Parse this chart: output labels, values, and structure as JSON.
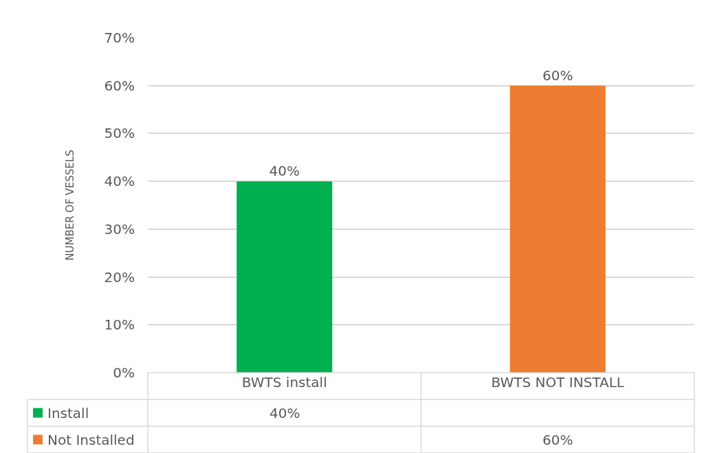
{
  "chart_data": {
    "type": "bar",
    "ylabel": "NUMBER OF VESSELS",
    "categories": [
      "BWTS install",
      "BWTS NOT INSTALL"
    ],
    "series": [
      {
        "name": "Install",
        "color": "#00b050",
        "values": [
          40,
          null
        ],
        "value_labels": [
          "40%",
          null
        ]
      },
      {
        "name": "Not Installed",
        "color": "#ed7d31",
        "values": [
          null,
          60
        ],
        "value_labels": [
          null,
          "60%"
        ]
      }
    ],
    "ylim": [
      0,
      70
    ],
    "yticks": [
      {
        "value": 0,
        "label": "0%"
      },
      {
        "value": 10,
        "label": "10%"
      },
      {
        "value": 20,
        "label": "20%"
      },
      {
        "value": 30,
        "label": "30%"
      },
      {
        "value": 40,
        "label": "40%"
      },
      {
        "value": 50,
        "label": "50%"
      },
      {
        "value": 60,
        "label": "60%"
      },
      {
        "value": 70,
        "label": "70%"
      }
    ],
    "grid": "y",
    "legend": "bottom"
  }
}
